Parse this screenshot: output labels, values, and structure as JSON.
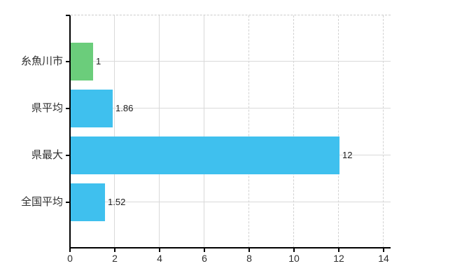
{
  "chart_data": {
    "type": "bar",
    "orientation": "horizontal",
    "title": "",
    "xlabel": "",
    "ylabel": "",
    "categories": [
      "糸魚川市",
      "県平均",
      "県最大",
      "全国平均"
    ],
    "values": [
      1,
      1.86,
      12,
      1.52
    ],
    "value_labels": [
      "1",
      "1.86",
      "12",
      "1.52"
    ],
    "series": [
      {
        "name": "糸魚川市",
        "value": 1,
        "color": "#6bcd7b"
      },
      {
        "name": "県平均",
        "value": 1.86,
        "color": "#3fc0ee"
      },
      {
        "name": "県最大",
        "value": 12,
        "color": "#3fc0ee"
      },
      {
        "name": "全国平均",
        "value": 1.52,
        "color": "#3fc0ee"
      }
    ],
    "bar_colors": [
      "#6bcd7b",
      "#3fc0ee",
      "#3fc0ee",
      "#3fc0ee"
    ],
    "x_ticks": [
      0,
      2,
      4,
      6,
      8,
      10,
      12,
      14
    ],
    "x_tick_labels": [
      "0",
      "2",
      "4",
      "6",
      "8",
      "10",
      "12",
      "14"
    ],
    "xlim": [
      0,
      14.3
    ],
    "grid": true,
    "legend": false,
    "colors": {
      "bar_green": "#6bcd7b",
      "bar_blue": "#3fc0ee",
      "gridline_solid": "#d9d9d9",
      "gridline_dashed": "#d2d2d2",
      "top_border": "#cccccc",
      "axis": "#000000",
      "text": "#2f2f2f",
      "background": "#ffffff"
    }
  }
}
